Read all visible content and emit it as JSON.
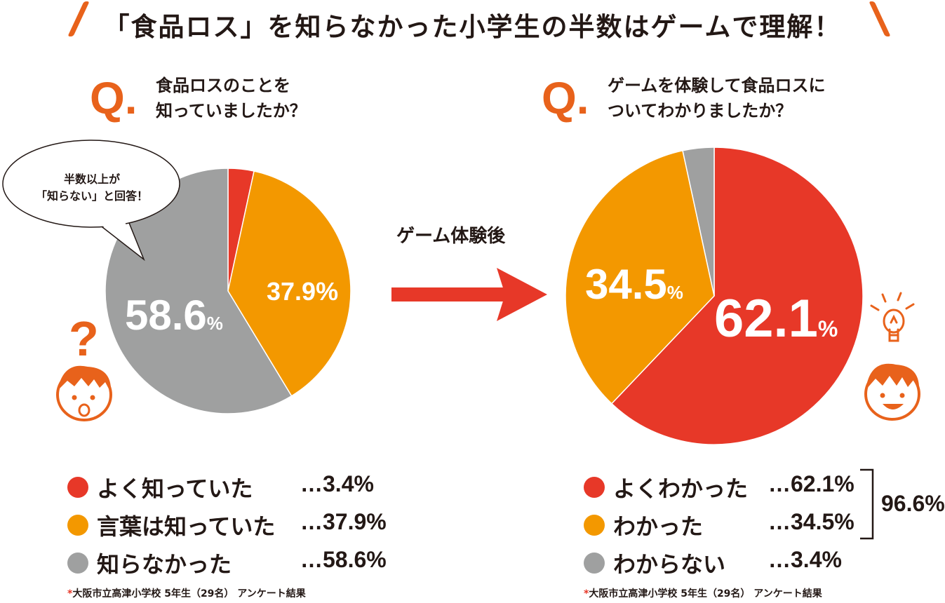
{
  "headline": "「食品ロス」を知らなかった小学生の半数はゲームで理解！",
  "colors": {
    "red": "#e73828",
    "orange": "#f39800",
    "gray": "#9fa0a0",
    "accent": "#e8621b"
  },
  "left": {
    "q_mark": "Q.",
    "question_line1": "食品ロスのことを",
    "question_line2": "知っていましたか？",
    "bubble_line1": "半数以上が",
    "bubble_line2": "「知らない」と回答！",
    "legend": [
      {
        "label": "よく知っていた",
        "value": "…3.4%"
      },
      {
        "label": "言葉は知っていた",
        "value": "…37.9%"
      },
      {
        "label": "知らなかった",
        "value": "…58.6%"
      }
    ],
    "footnote_mark": "*",
    "footnote": "大阪市立高津小学校 5年生（29名） アンケート結果",
    "icon": "confused-boy-icon"
  },
  "arrow_label": "ゲーム体験後",
  "right": {
    "q_mark": "Q.",
    "question_line1": "ゲームを体験して食品ロスに",
    "question_line2": "ついてわかりましたか？",
    "legend": [
      {
        "label": "よくわかった",
        "value": "…62.1%"
      },
      {
        "label": "わかった",
        "value": "…34.5%"
      },
      {
        "label": "わからない",
        "value": "…3.4%"
      }
    ],
    "total": "96.6%",
    "footnote_mark": "*",
    "footnote": "大阪市立高津小学校 5年生（29名） アンケート結果",
    "icon": "lightbulb-boy-icon"
  },
  "chart_data": [
    {
      "type": "pie",
      "title": "食品ロスのことを知っていましたか？",
      "categories": [
        "よく知っていた",
        "言葉は知っていた",
        "知らなかった"
      ],
      "values": [
        3.4,
        37.9,
        58.6
      ],
      "labels": [
        "",
        "37.9%",
        "58.6%"
      ],
      "colors": [
        "#e73828",
        "#f39800",
        "#9fa0a0"
      ]
    },
    {
      "type": "pie",
      "title": "ゲームを体験して食品ロスについてわかりましたか？",
      "categories": [
        "よくわかった",
        "わかった",
        "わからない"
      ],
      "values": [
        62.1,
        34.5,
        3.4
      ],
      "labels": [
        "62.1%",
        "34.5%",
        ""
      ],
      "colors": [
        "#e73828",
        "#f39800",
        "#9fa0a0"
      ]
    }
  ]
}
